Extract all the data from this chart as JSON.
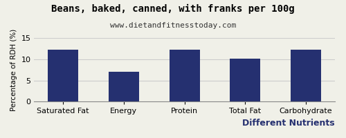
{
  "title": "Beans, baked, canned, with franks per 100g",
  "subtitle": "www.dietandfitnesstoday.com",
  "xlabel": "Different Nutrients",
  "ylabel": "Percentage of RDH (%)",
  "categories": [
    "Saturated Fat",
    "Energy",
    "Protein",
    "Total Fat",
    "Carbohydrate"
  ],
  "values": [
    12.2,
    7.1,
    12.2,
    10.1,
    12.2
  ],
  "bar_color": "#253070",
  "ylim": [
    0,
    15
  ],
  "yticks": [
    0,
    5,
    10,
    15
  ],
  "title_fontsize": 10,
  "subtitle_fontsize": 8,
  "xlabel_fontsize": 9,
  "ylabel_fontsize": 7.5,
  "tick_fontsize": 8,
  "background_color": "#f0f0e8",
  "grid_color": "#cccccc",
  "bar_width": 0.5
}
